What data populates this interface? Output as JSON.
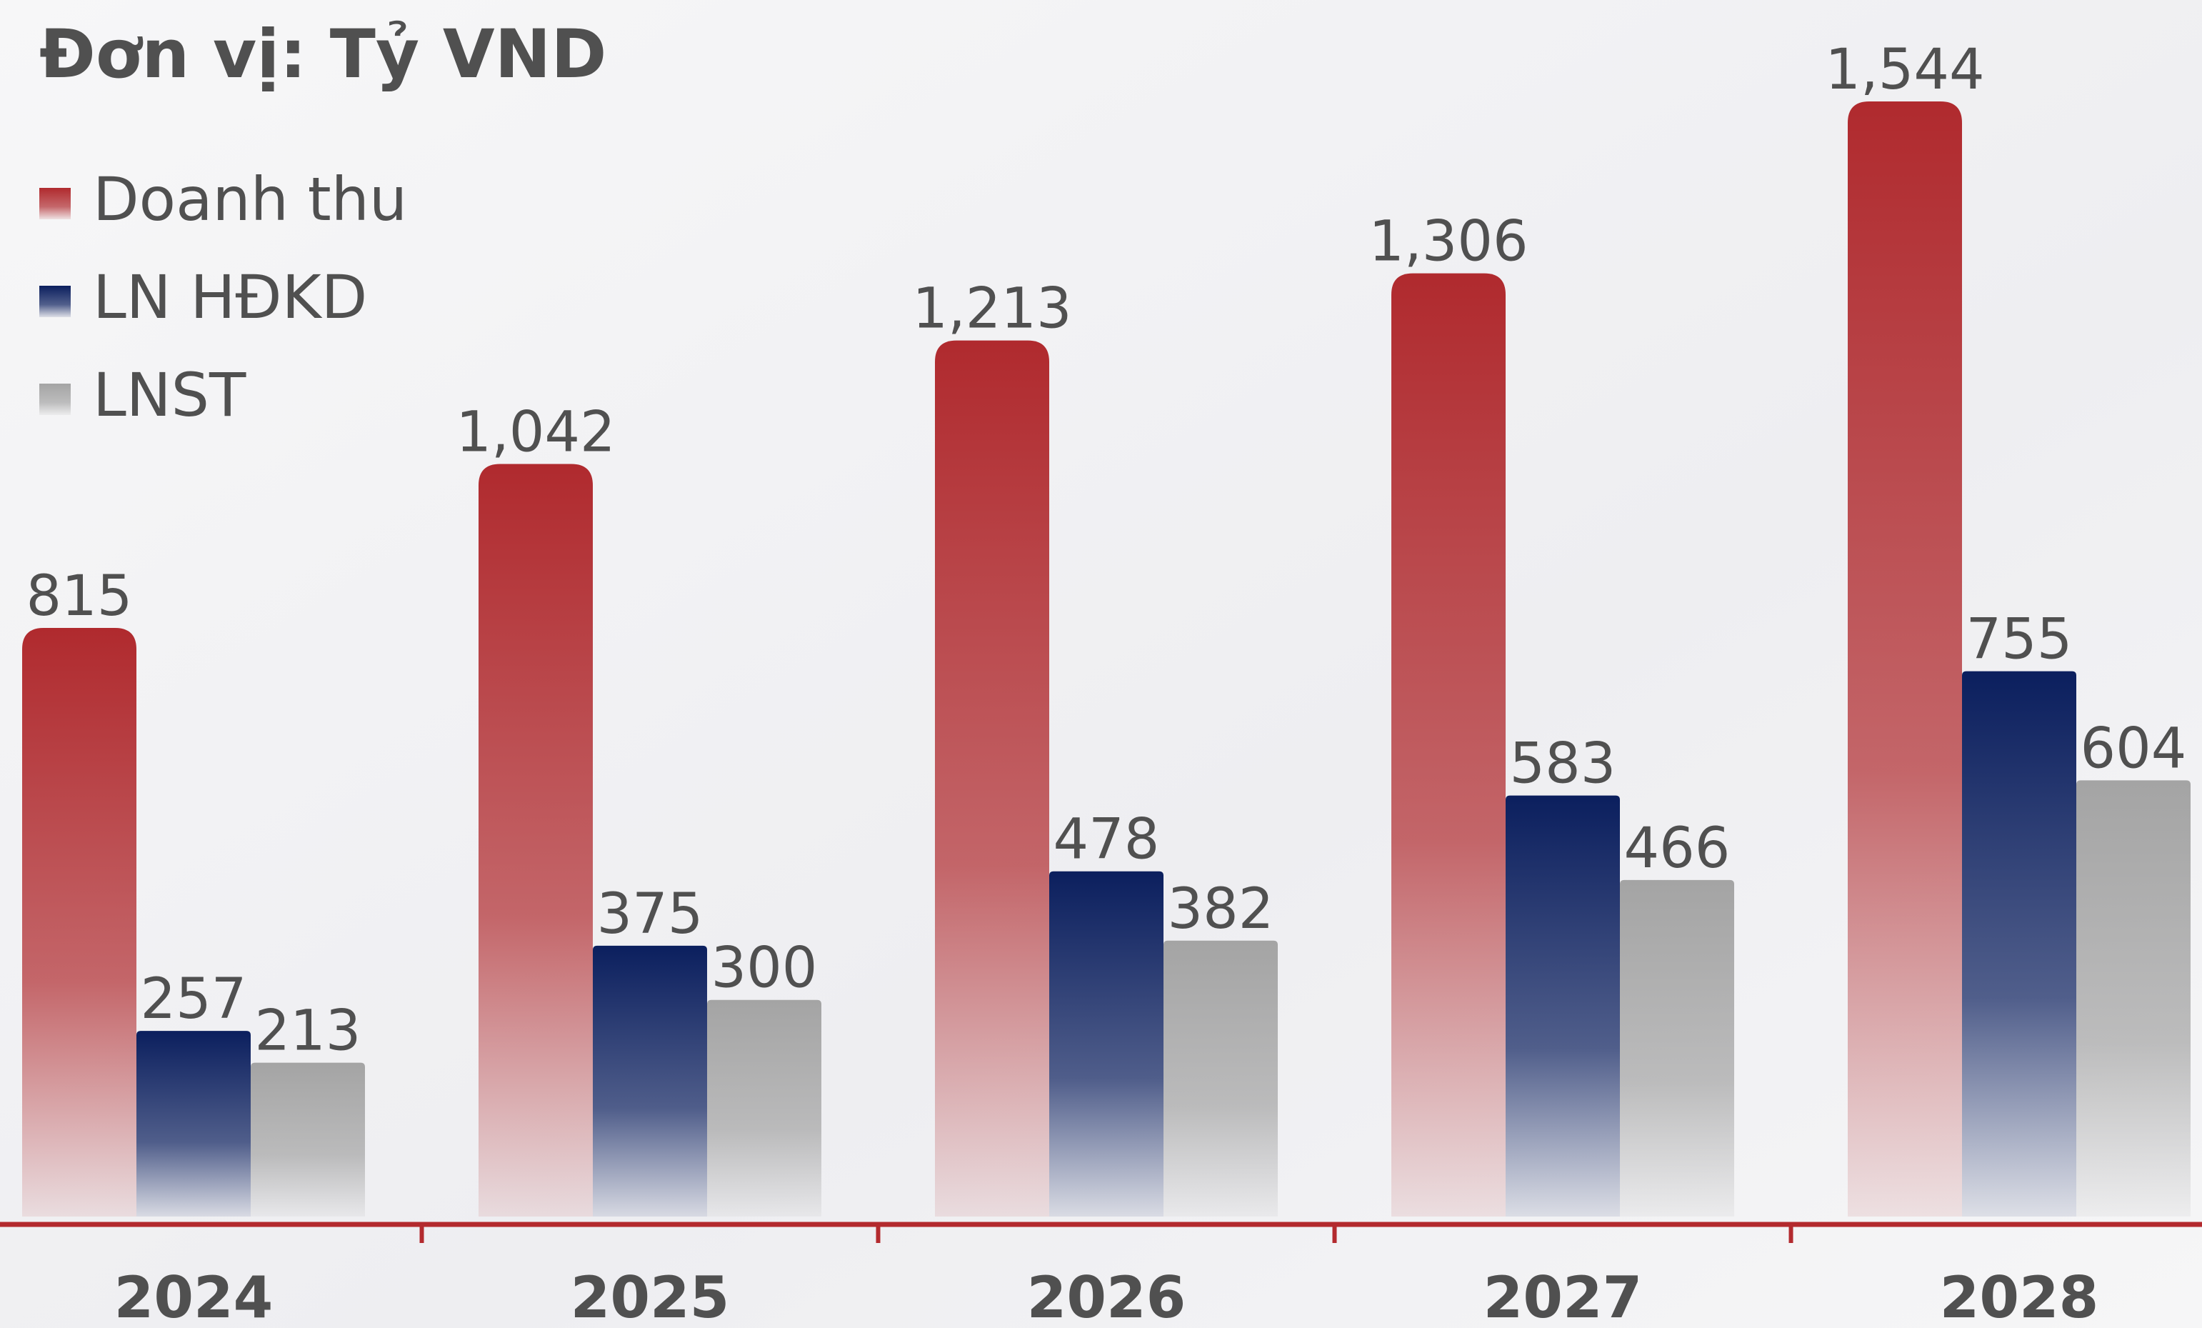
{
  "chart_data": {
    "type": "bar",
    "title": "Đơn vị: Tỷ VND",
    "categories": [
      "2024",
      "2025",
      "2026",
      "2027",
      "2028"
    ],
    "series": [
      {
        "name": "Doanh thu",
        "color": "#b02a2e",
        "values": [
          815,
          1042,
          1213,
          1306,
          1544
        ],
        "value_labels": [
          "815",
          "1,042",
          "1,213",
          "1,306",
          "1,544"
        ]
      },
      {
        "name": "LN HĐKD",
        "color": "#0b1f5e",
        "values": [
          257,
          375,
          478,
          583,
          755
        ]
      },
      {
        "name": "LNST",
        "color": "#a4a4a4",
        "values": [
          213,
          300,
          382,
          466,
          604
        ]
      }
    ],
    "legend": "top-left"
  }
}
